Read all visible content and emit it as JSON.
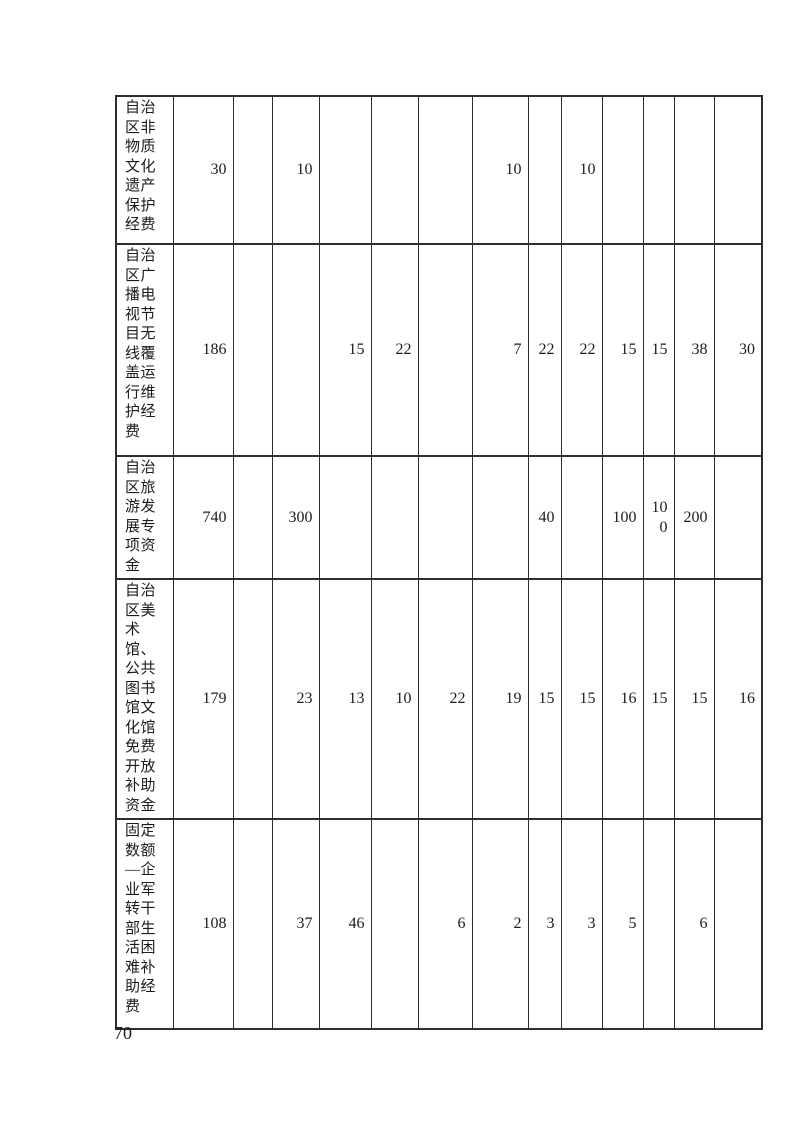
{
  "page": {
    "number": "70"
  },
  "table": {
    "rows": [
      {
        "label": "自治\n区非\n物质\n文化\n遗产\n保护\n经费",
        "values": [
          "30",
          "",
          "10",
          "",
          "",
          "",
          "10",
          "",
          "10",
          "",
          "",
          "",
          ""
        ]
      },
      {
        "label": "自治\n区广\n播电\n视节\n目无\n线覆\n盖运\n行维\n护经\n费",
        "values": [
          "186",
          "",
          "",
          "15",
          "22",
          "",
          "7",
          "22",
          "22",
          "15",
          "15",
          "38",
          "30"
        ]
      },
      {
        "label": "自治\n区旅\n游发\n展专\n项资\n金",
        "values": [
          "740",
          "",
          "300",
          "",
          "",
          "",
          "",
          "40",
          "",
          "100",
          "100",
          "200",
          ""
        ]
      },
      {
        "label": "自治\n区美\n术馆、\n公共\n图书\n馆文\n化馆\n免费\n开放\n补助\n资金",
        "values": [
          "179",
          "",
          "23",
          "13",
          "10",
          "22",
          "19",
          "15",
          "15",
          "16",
          "15",
          "15",
          "16"
        ]
      },
      {
        "label": "固定\n数额\n—企\n业军\n转干\n部生\n活困\n难补\n助经\n费",
        "values": [
          "108",
          "",
          "37",
          "46",
          "",
          "6",
          "2",
          "3",
          "3",
          "5",
          "",
          "6",
          ""
        ]
      }
    ]
  }
}
